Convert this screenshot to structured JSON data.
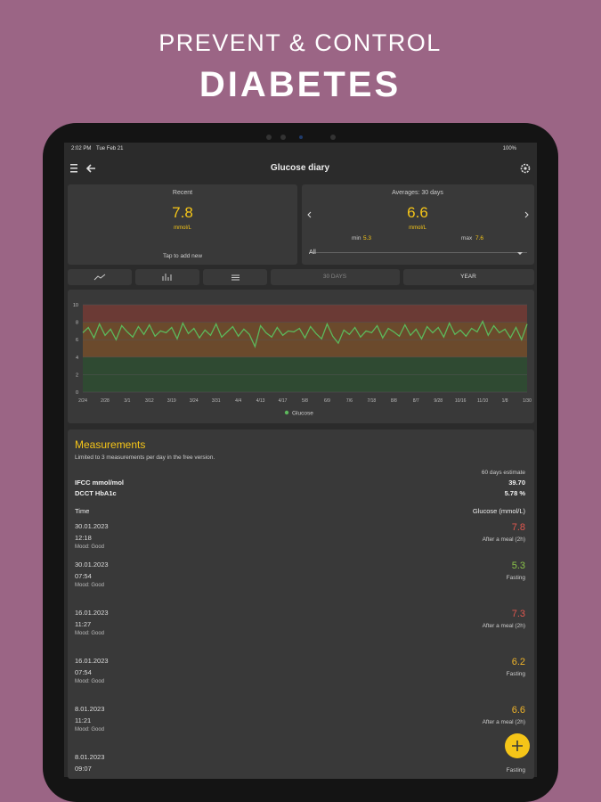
{
  "header": {
    "line1": "PREVENT & CONTROL",
    "line2": "DIABETES"
  },
  "status": {
    "time": "2:02 PM",
    "date": "Tue Feb 21",
    "battery": "100%"
  },
  "appbar": {
    "title": "Glucose diary"
  },
  "recent": {
    "label": "Recent",
    "value": 7.8,
    "unit": "mmol/L",
    "hint": "Tap to add new"
  },
  "averages": {
    "label": "Averages: 30 days",
    "value": 6.6,
    "unit": "mmol/L",
    "min_label": "min",
    "min": 5.3,
    "max_label": "max",
    "max": 7.6,
    "filter": "All"
  },
  "tabs": [
    "30 DAYS",
    "YEAR"
  ],
  "chart_data": {
    "type": "line",
    "ylim": [
      0,
      10
    ],
    "yticks": [
      0,
      2,
      4,
      6,
      8,
      10
    ],
    "bands": [
      {
        "from": 8,
        "to": 10,
        "color": "#6b3a35"
      },
      {
        "from": 4,
        "to": 8,
        "color": "#6b4a2c"
      },
      {
        "from": 0,
        "to": 4,
        "color": "#2f4a32"
      }
    ],
    "categories": [
      "2/24",
      null,
      null,
      null,
      "2/28",
      null,
      null,
      null,
      "3/1",
      null,
      null,
      null,
      "3/12",
      null,
      null,
      null,
      "3/19",
      null,
      null,
      null,
      "3/24",
      null,
      null,
      null,
      "3/31",
      null,
      null,
      null,
      "4/4",
      null,
      null,
      null,
      "4/13",
      null,
      null,
      null,
      "4/17",
      null,
      null,
      null,
      "5/8",
      null,
      null,
      null,
      "6/9",
      null,
      null,
      null,
      "7/6",
      null,
      null,
      null,
      "7/18",
      null,
      null,
      null,
      "8/8",
      null,
      null,
      null,
      "8/7",
      null,
      null,
      null,
      "9/28",
      null,
      null,
      null,
      "10/16",
      null,
      null,
      null,
      "11/10",
      null,
      null,
      null,
      "1/8",
      null,
      null,
      null,
      "1/30"
    ],
    "series": [
      {
        "name": "Glucose",
        "color": "#5cb85c",
        "values": [
          6.8,
          7.4,
          6.2,
          7.8,
          6.5,
          7.2,
          6.0,
          7.6,
          6.9,
          6.3,
          7.5,
          6.6,
          7.7,
          6.4,
          7.0,
          6.8,
          7.4,
          6.1,
          7.9,
          6.7,
          7.3,
          6.2,
          7.1,
          6.5,
          7.8,
          6.3,
          6.9,
          7.5,
          6.4,
          7.2,
          6.6,
          5.2,
          7.6,
          6.8,
          6.3,
          7.4,
          6.5,
          7.0,
          6.9,
          7.3,
          6.2,
          7.5,
          6.7,
          6.1,
          7.8,
          6.4,
          5.6,
          7.1,
          6.6,
          7.4,
          6.3,
          7.0,
          6.8,
          7.6,
          6.2,
          7.3,
          6.9,
          6.4,
          7.7,
          6.5,
          7.2,
          6.1,
          7.5,
          6.8,
          7.4,
          6.3,
          7.9,
          6.6,
          7.1,
          6.4,
          7.3,
          6.9,
          8.1,
          6.5,
          7.6,
          6.8,
          7.2,
          6.2,
          7.4,
          6.0,
          7.8
        ]
      }
    ],
    "legend": "bottom"
  },
  "measurements": {
    "title": "Measurements",
    "note": "Limited to 3 measurements per day in the free version.",
    "estimate_label": "60 days estimate",
    "ifcc_label": "IFCC mmol/mol",
    "ifcc_value": "39.70",
    "dcct_label": "DCCT HbA1c",
    "dcct_value": "5.78 %",
    "col_time": "Time",
    "col_glucose": "Glucose (mmol/L)",
    "entries": [
      {
        "date": "30.01.2023",
        "time": "12:18",
        "mood": "Mood: Good",
        "value": 7.8,
        "color": "#e0574f",
        "tag": "After a meal (2h)"
      },
      {
        "date": "30.01.2023",
        "time": "07:54",
        "mood": "Mood: Good",
        "value": 5.3,
        "color": "#8bc34a",
        "tag": "Fasting"
      },
      {
        "date": "16.01.2023",
        "time": "11:27",
        "mood": "Mood: Good",
        "value": 7.3,
        "color": "#e0574f",
        "tag": "After a meal (2h)"
      },
      {
        "date": "16.01.2023",
        "time": "07:54",
        "mood": "Mood: Good",
        "value": 6.2,
        "color": "#f0b429",
        "tag": "Fasting"
      },
      {
        "date": "8.01.2023",
        "time": "11:21",
        "mood": "Mood: Good",
        "value": 6.6,
        "color": "#f0b429",
        "tag": "After a meal (2h)"
      },
      {
        "date": "8.01.2023",
        "time": "09:07",
        "tag": "Fasting"
      }
    ]
  }
}
